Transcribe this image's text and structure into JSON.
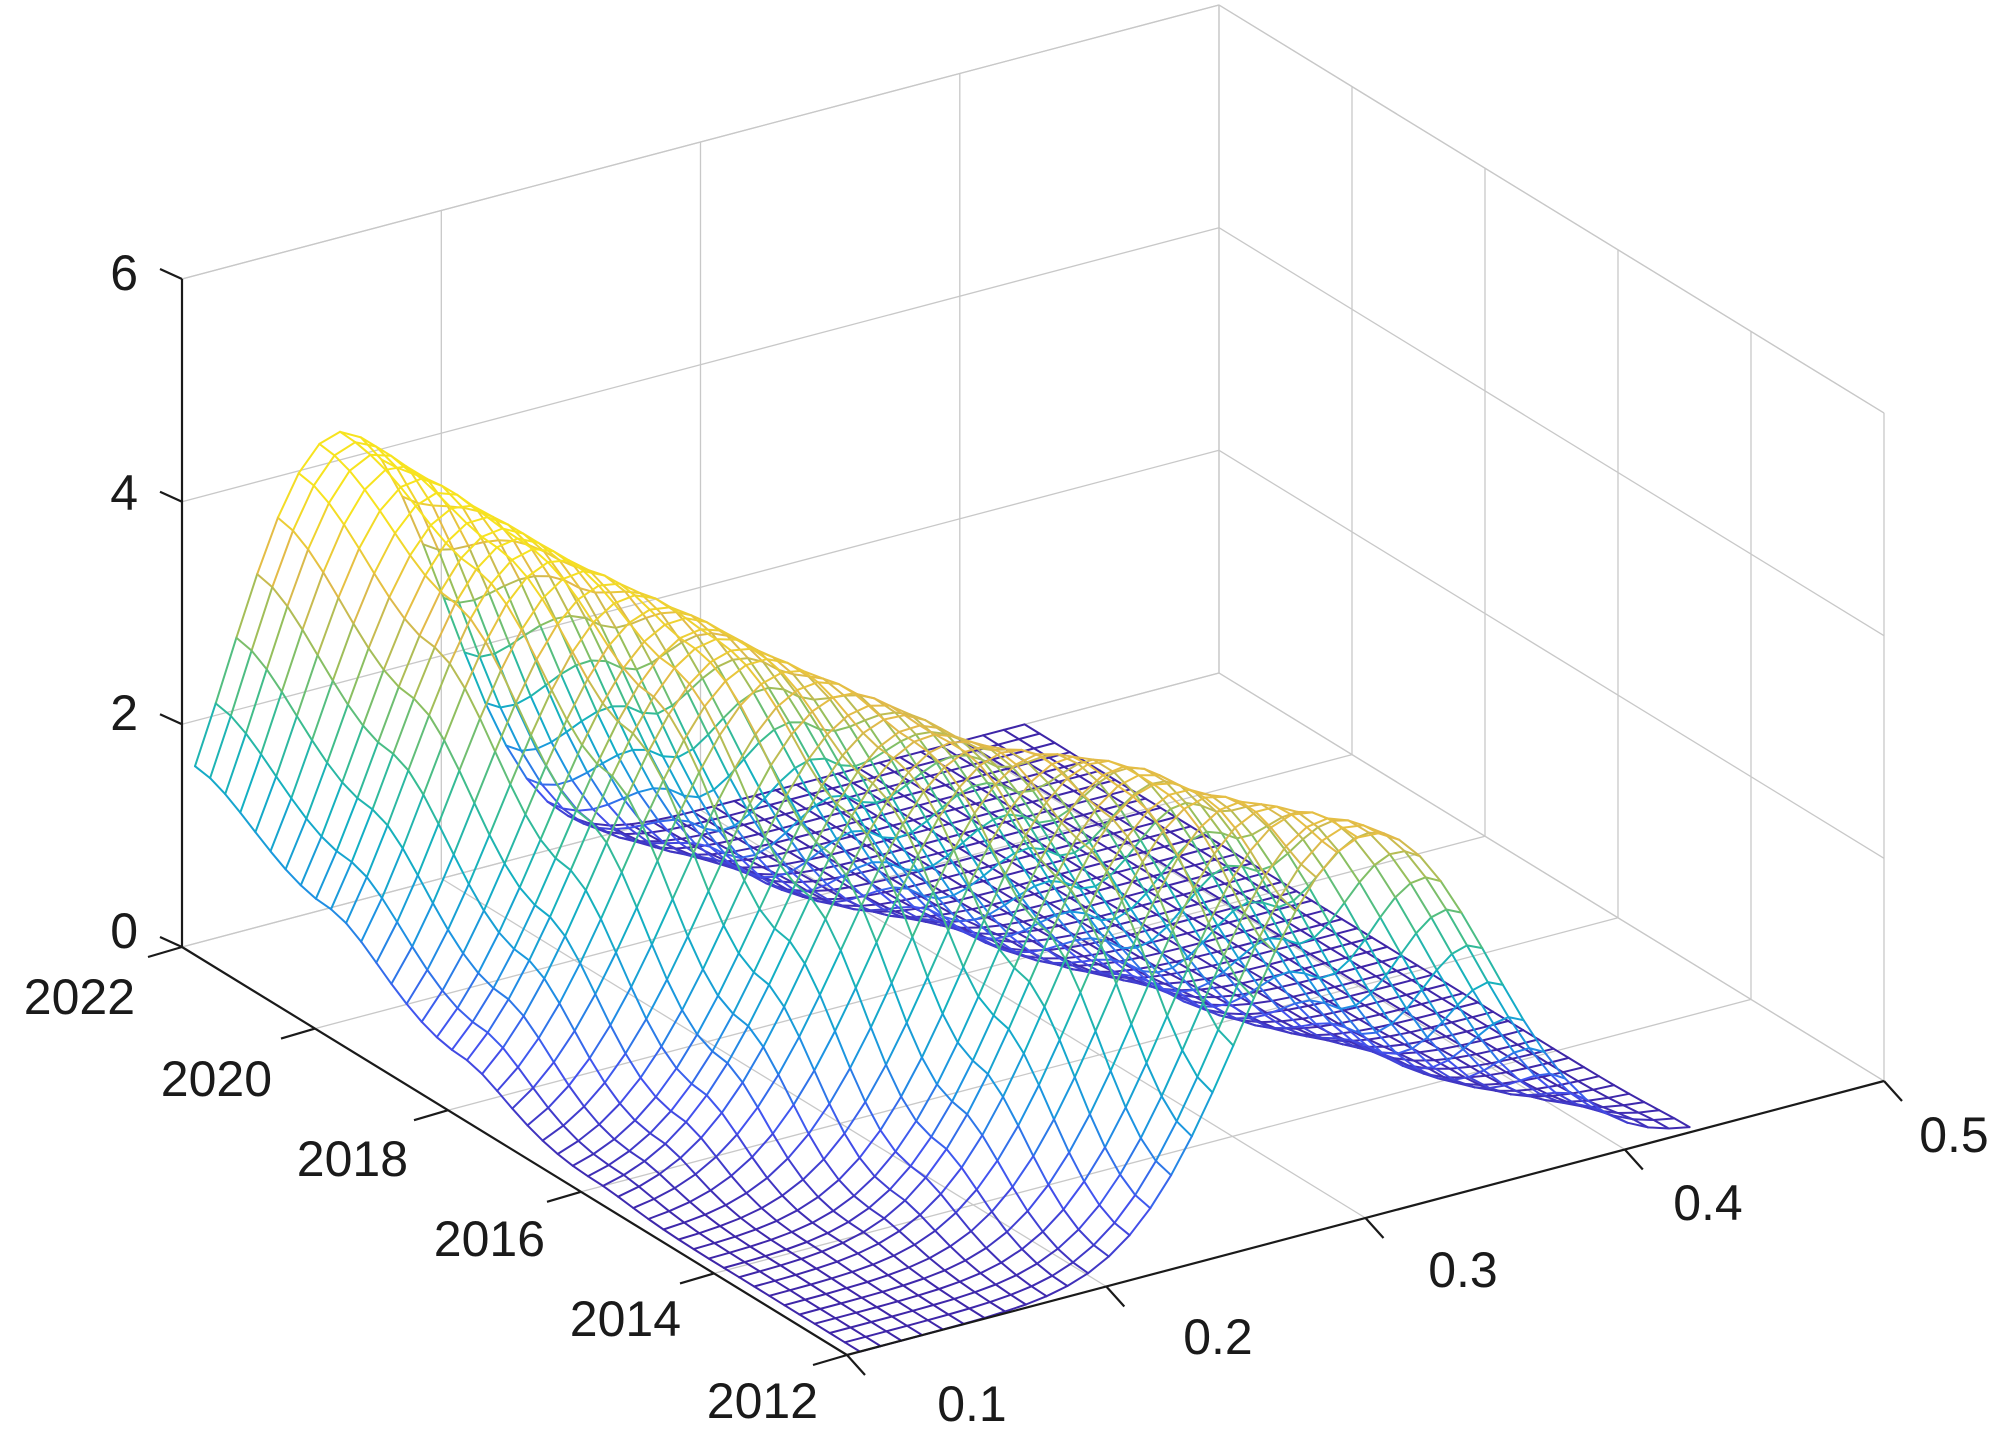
{
  "chart_data": {
    "type": "surface-3d-mesh",
    "title": "",
    "xlabel": "",
    "ylabel": "",
    "zlabel": "",
    "x_axis": {
      "ticks": [
        0.1,
        0.2,
        0.3,
        0.4,
        0.5
      ],
      "tick_labels": [
        "0.1",
        "0.2",
        "0.3",
        "0.4",
        "0.5"
      ],
      "range": [
        0.1,
        0.5
      ]
    },
    "y_axis": {
      "ticks": [
        2012,
        2014,
        2016,
        2018,
        2020,
        2022
      ],
      "tick_labels": [
        "2012",
        "2014",
        "2016",
        "2018",
        "2020",
        "2022"
      ],
      "range": [
        2012,
        2022
      ]
    },
    "z_axis": {
      "ticks": [
        0,
        2,
        4,
        6
      ],
      "tick_labels": [
        "0",
        "2",
        "4",
        "6"
      ],
      "range": [
        0,
        6
      ]
    },
    "grid": true,
    "colormap": [
      "#3e26a8",
      "#4352f0",
      "#1d94e2",
      "#13b0c2",
      "#3bbd8e",
      "#94bf5c",
      "#e2b94a",
      "#f7e31f"
    ],
    "surface_profile": {
      "description": "density peak moving from lower x in later years to higher x in earlier years",
      "years": [
        2012,
        2014,
        2016,
        2018,
        2020,
        2022
      ],
      "peak_x": [
        0.3,
        0.265,
        0.23,
        0.2,
        0.175,
        0.16
      ],
      "peak_height": [
        3.4,
        3.4,
        3.3,
        3.6,
        3.9,
        4.2
      ],
      "peak_width": [
        0.052,
        0.052,
        0.055,
        0.055,
        0.05,
        0.045
      ]
    }
  }
}
